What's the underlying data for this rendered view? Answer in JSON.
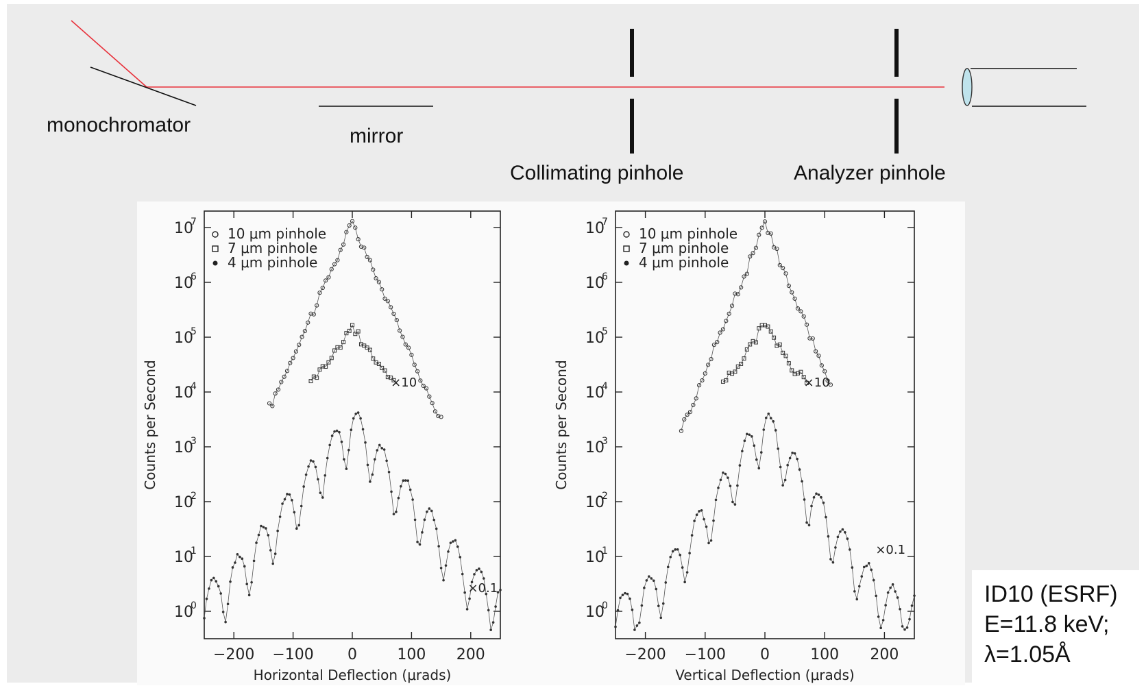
{
  "diagram": {
    "labels": {
      "monochromator": "monochromator",
      "mirror": "mirror",
      "collimating": "Collimating pinhole",
      "analyzer": "Analyzer pinhole"
    },
    "colors": {
      "beam": "#e8303a",
      "lens": "#bfe3ec"
    }
  },
  "caption": {
    "line1": "ID10 (ESRF)",
    "line2": "E=11.8 keV;",
    "line3": "λ=1.05Å"
  },
  "chart_data": [
    {
      "type": "scatter",
      "xlabel": "Horizontal Deflection (μrads)",
      "ylabel": "Counts per Second",
      "xlim": [
        -250,
        250
      ],
      "ylim_log10": [
        -0.5,
        7.3
      ],
      "xticks": [
        "−200",
        "−100",
        "0",
        "100",
        "200"
      ],
      "yticks": [
        "10",
        "10",
        "10",
        "10",
        "10",
        "10",
        "10",
        "10"
      ],
      "ytick_exponents": [
        "0",
        "1",
        "2",
        "3",
        "4",
        "5",
        "6",
        "7"
      ],
      "legend": [
        "10 μm pinhole",
        "7 μm pinhole",
        "4 μm pinhole"
      ],
      "annotations": [
        "×10",
        "×0.1"
      ],
      "series": [
        {
          "name": "10 μm pinhole",
          "peak": 12000000.0,
          "width_mrad": 18,
          "floor": 30,
          "xrange": [
            -140,
            150
          ]
        },
        {
          "name": "7 μm pinhole",
          "peak": 150000.0,
          "width_mrad": 25,
          "floor": 8000,
          "xrange": [
            -70,
            70
          ]
        },
        {
          "name": "4 μm pinhole",
          "peak": 3000,
          "width_mrad": 30,
          "floor": 1,
          "xrange": [
            -250,
            250
          ]
        }
      ]
    },
    {
      "type": "scatter",
      "xlabel": "Vertical Deflection (μrads)",
      "ylabel": "Counts per Second",
      "xlim": [
        -250,
        250
      ],
      "ylim_log10": [
        -0.5,
        7.3
      ],
      "xticks": [
        "−200",
        "−100",
        "0",
        "100",
        "200"
      ],
      "yticks": [
        "10",
        "10",
        "10",
        "10",
        "10",
        "10",
        "10",
        "10"
      ],
      "ytick_exponents": [
        "0",
        "1",
        "2",
        "3",
        "4",
        "5",
        "6",
        "7"
      ],
      "legend": [
        "10 μm pinhole",
        "7 μm pinhole",
        "4 μm pinhole"
      ],
      "annotations": [
        "×10",
        "×0.1"
      ],
      "series": [
        {
          "name": "10 μm pinhole",
          "peak": 12000000.0,
          "width_mrad": 16,
          "floor": 200,
          "xrange": [
            -140,
            110
          ]
        },
        {
          "name": "7 μm pinhole",
          "peak": 180000.0,
          "width_mrad": 22,
          "floor": 8000,
          "xrange": [
            -70,
            70
          ]
        },
        {
          "name": "4 μm pinhole",
          "peak": 3000,
          "width_mrad": 25,
          "floor": 1,
          "xrange": [
            -250,
            250
          ]
        }
      ]
    }
  ]
}
